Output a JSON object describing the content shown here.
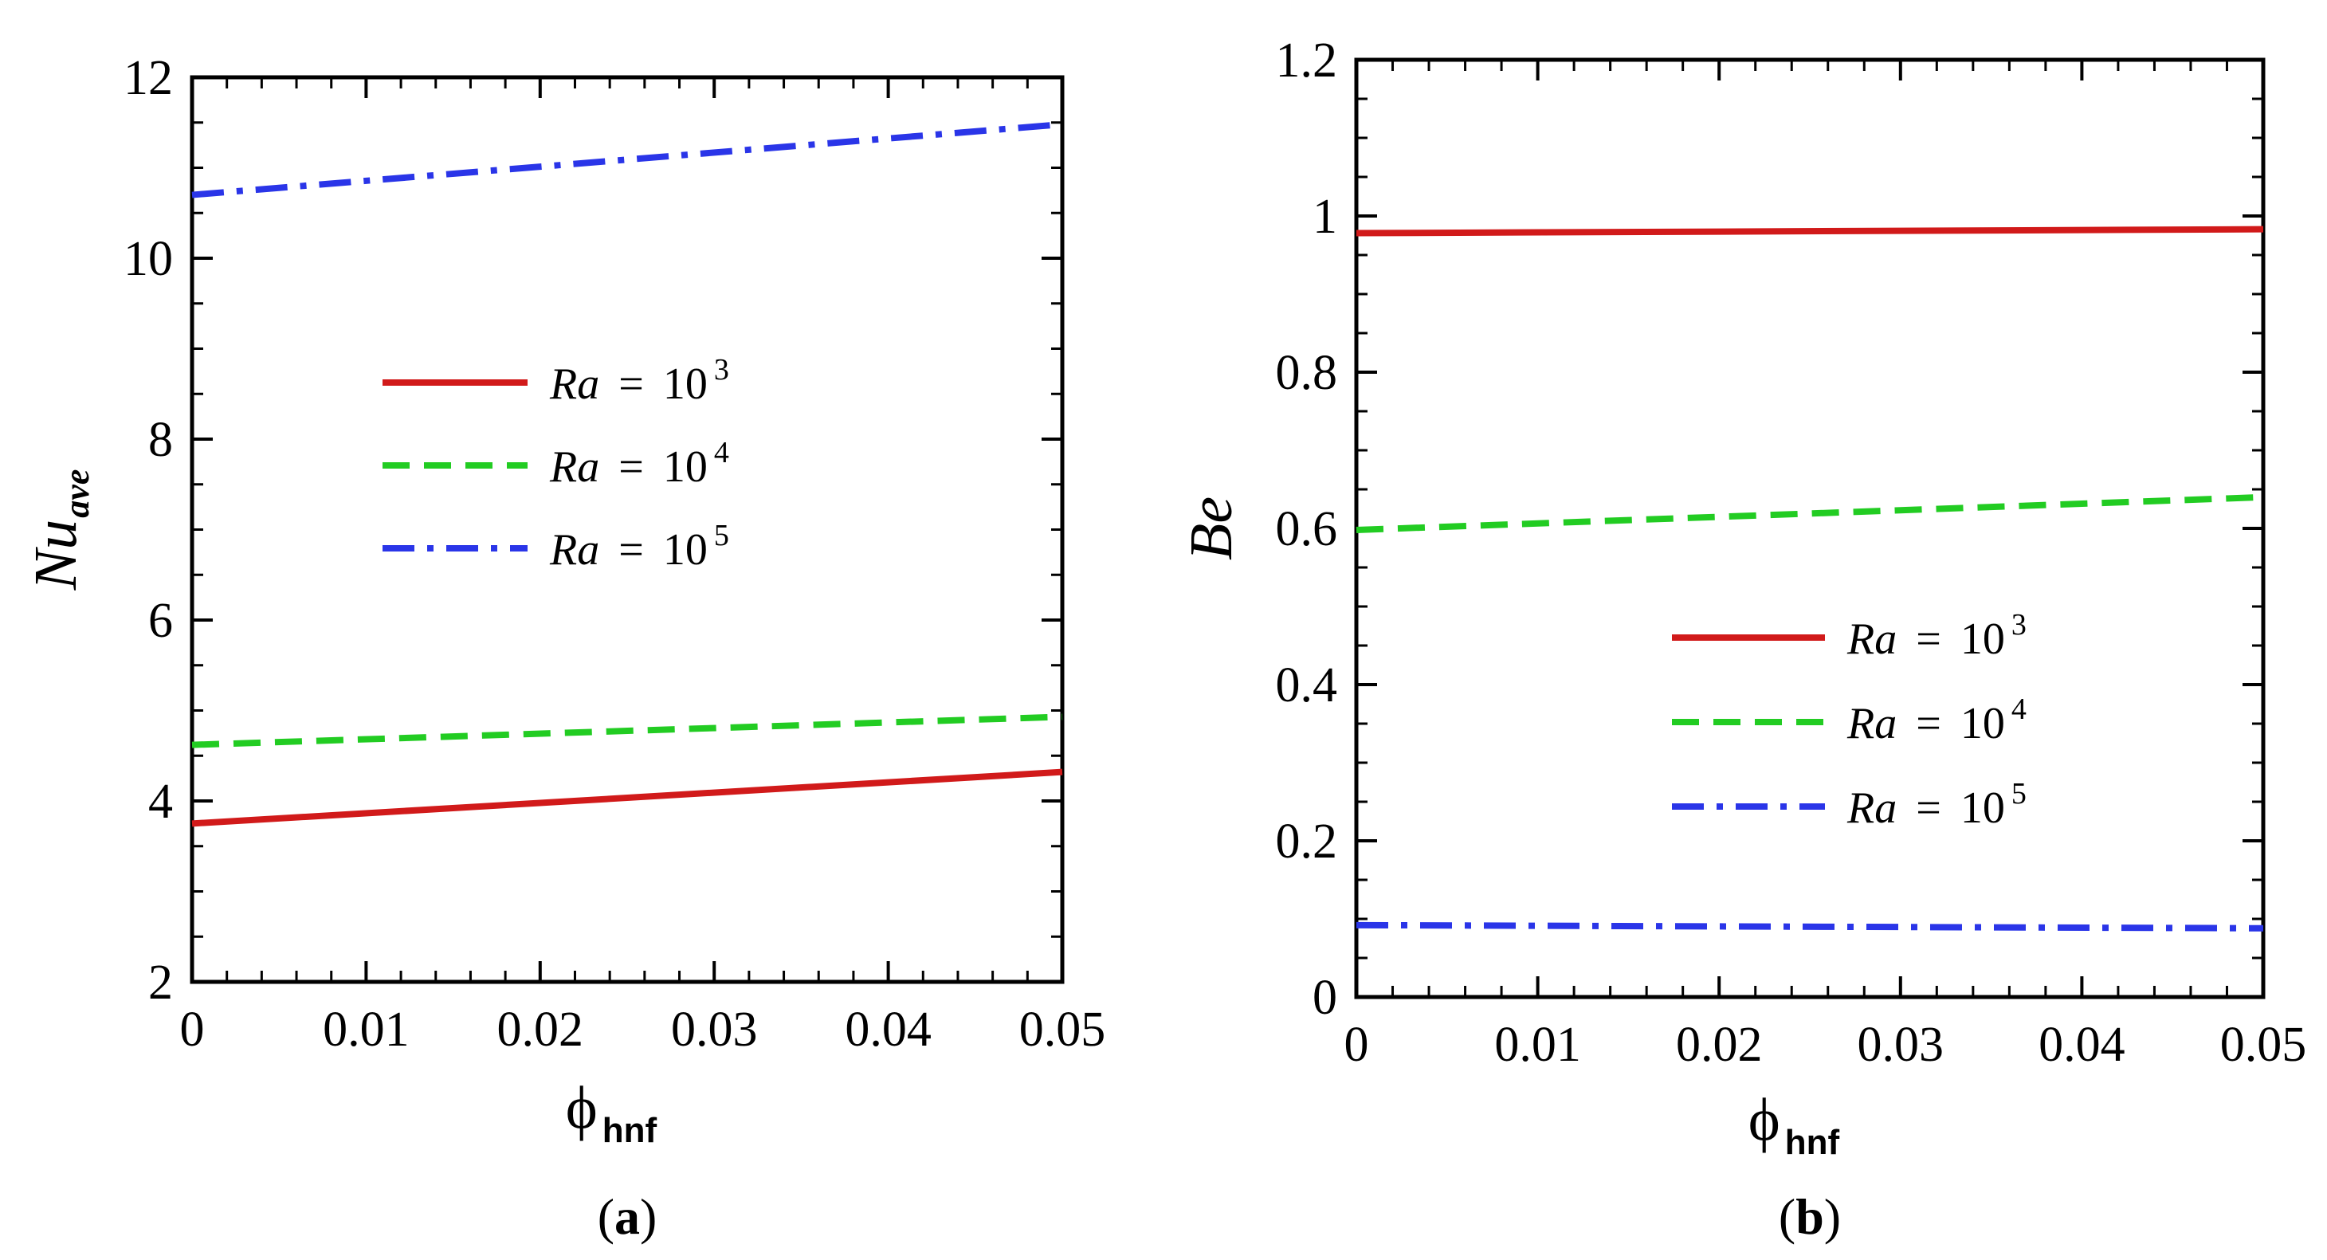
{
  "chart_data": [
    {
      "type": "line",
      "panel_label": "(a)",
      "panel_letter": "a",
      "xlabel": {
        "symbol": "ϕ",
        "subscript": "hnf"
      },
      "ylabel": {
        "base": "Nu",
        "subscript": "ave"
      },
      "xlim": [
        0,
        0.05
      ],
      "ylim": [
        2,
        12
      ],
      "xticks": [
        0,
        0.01,
        0.02,
        0.03,
        0.04,
        0.05
      ],
      "xtick_labels": [
        "0",
        "0.01",
        "0.02",
        "0.03",
        "0.04",
        "0.05"
      ],
      "yticks": [
        2,
        4,
        6,
        8,
        10,
        12
      ],
      "ytick_labels": [
        "2",
        "4",
        "6",
        "8",
        "10",
        "12"
      ],
      "grid": false,
      "legend_position": "center-left",
      "series": [
        {
          "name": "Ra = 10^3",
          "legend_var": "Ra",
          "legend_eq": "=",
          "legend_base": "10",
          "legend_exp": "3",
          "color": "#d11a1a",
          "style": "solid",
          "x": [
            0,
            0.05
          ],
          "values": [
            3.75,
            4.32
          ]
        },
        {
          "name": "Ra = 10^4",
          "legend_var": "Ra",
          "legend_eq": "=",
          "legend_base": "10",
          "legend_exp": "4",
          "color": "#22cc22",
          "style": "dashed",
          "x": [
            0,
            0.05
          ],
          "values": [
            4.62,
            4.93
          ]
        },
        {
          "name": "Ra = 10^5",
          "legend_var": "Ra",
          "legend_eq": "=",
          "legend_base": "10",
          "legend_exp": "5",
          "color": "#2a35e8",
          "style": "dashdot",
          "x": [
            0,
            0.05
          ],
          "values": [
            10.7,
            11.48
          ]
        }
      ]
    },
    {
      "type": "line",
      "panel_label": "(b)",
      "panel_letter": "b",
      "xlabel": {
        "symbol": "ϕ",
        "subscript": "hnf"
      },
      "ylabel": {
        "base": "Be",
        "subscript": ""
      },
      "xlim": [
        0,
        0.05
      ],
      "ylim": [
        0,
        1.2
      ],
      "xticks": [
        0,
        0.01,
        0.02,
        0.03,
        0.04,
        0.05
      ],
      "xtick_labels": [
        "0",
        "0.01",
        "0.02",
        "0.03",
        "0.04",
        "0.05"
      ],
      "yticks": [
        0,
        0.2,
        0.4,
        0.6,
        0.8,
        1.0,
        1.2
      ],
      "ytick_labels": [
        "0",
        "0.2",
        "0.4",
        "0.6",
        "0.8",
        "1",
        "1.2"
      ],
      "grid": false,
      "legend_position": "center-right",
      "series": [
        {
          "name": "Ra = 10^3",
          "legend_var": "Ra",
          "legend_eq": "=",
          "legend_base": "10",
          "legend_exp": "3",
          "color": "#d11a1a",
          "style": "solid",
          "x": [
            0,
            0.05
          ],
          "values": [
            0.978,
            0.983
          ]
        },
        {
          "name": "Ra = 10^4",
          "legend_var": "Ra",
          "legend_eq": "=",
          "legend_base": "10",
          "legend_exp": "4",
          "color": "#22cc22",
          "style": "dashed",
          "x": [
            0,
            0.05
          ],
          "values": [
            0.598,
            0.64
          ]
        },
        {
          "name": "Ra = 10^5",
          "legend_var": "Ra",
          "legend_eq": "=",
          "legend_base": "10",
          "legend_exp": "5",
          "color": "#2a35e8",
          "style": "dashdot",
          "x": [
            0,
            0.05
          ],
          "values": [
            0.092,
            0.088
          ]
        }
      ]
    }
  ]
}
